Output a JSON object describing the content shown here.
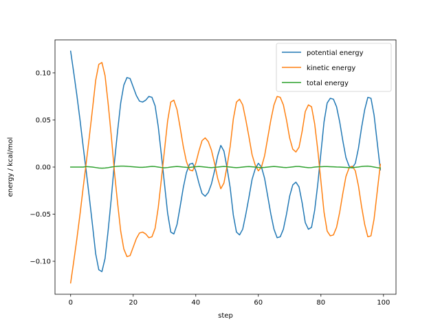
{
  "chart_data": {
    "type": "line",
    "title": "",
    "xlabel": "step",
    "ylabel": "energy / kcal/mol",
    "xlim": [
      -5,
      104
    ],
    "ylim": [
      -0.135,
      0.135
    ],
    "xticks": [
      0,
      20,
      40,
      60,
      80,
      100
    ],
    "yticks": [
      -0.1,
      -0.05,
      0.0,
      0.05,
      0.1
    ],
    "ytick_labels": [
      "−0.10",
      "−0.05",
      "0.00",
      "0.05",
      "0.10"
    ],
    "grid": false,
    "legend_position": "top-right",
    "x": [
      0,
      1,
      2,
      3,
      4,
      5,
      6,
      7,
      8,
      9,
      10,
      11,
      12,
      13,
      14,
      15,
      16,
      17,
      18,
      19,
      20,
      21,
      22,
      23,
      24,
      25,
      26,
      27,
      28,
      29,
      30,
      31,
      32,
      33,
      34,
      35,
      36,
      37,
      38,
      39,
      40,
      41,
      42,
      43,
      44,
      45,
      46,
      47,
      48,
      49,
      50,
      51,
      52,
      53,
      54,
      55,
      56,
      57,
      58,
      59,
      60,
      61,
      62,
      63,
      64,
      65,
      66,
      67,
      68,
      69,
      70,
      71,
      72,
      73,
      74,
      75,
      76,
      77,
      78,
      79,
      80,
      81,
      82,
      83,
      84,
      85,
      86,
      87,
      88,
      89,
      90,
      91,
      92,
      93,
      94,
      95,
      96,
      97,
      98,
      99
    ],
    "series": [
      {
        "name": "potential energy",
        "color": "#1f77b4",
        "values": [
          0.123,
          0.1,
          0.076,
          0.05,
          0.022,
          -0.005,
          -0.033,
          -0.062,
          -0.092,
          -0.109,
          -0.111,
          -0.097,
          -0.067,
          -0.033,
          0.005,
          0.038,
          0.068,
          0.087,
          0.095,
          0.094,
          0.085,
          0.076,
          0.07,
          0.069,
          0.071,
          0.075,
          0.074,
          0.065,
          0.043,
          0.013,
          -0.018,
          -0.049,
          -0.069,
          -0.071,
          -0.061,
          -0.042,
          -0.022,
          -0.006,
          0.003,
          0.004,
          -0.004,
          -0.017,
          -0.028,
          -0.031,
          -0.027,
          -0.018,
          -0.004,
          0.012,
          0.023,
          0.017,
          -0.001,
          -0.022,
          -0.051,
          -0.069,
          -0.072,
          -0.066,
          -0.05,
          -0.032,
          -0.013,
          -0.002,
          0.004,
          0.0,
          -0.012,
          -0.031,
          -0.05,
          -0.066,
          -0.075,
          -0.074,
          -0.066,
          -0.05,
          -0.031,
          -0.019,
          -0.016,
          -0.021,
          -0.038,
          -0.059,
          -0.066,
          -0.064,
          -0.046,
          -0.018,
          0.015,
          0.048,
          0.068,
          0.073,
          0.072,
          0.064,
          0.048,
          0.028,
          0.01,
          0.001,
          -0.001,
          0.004,
          0.02,
          0.042,
          0.061,
          0.074,
          0.073,
          0.055,
          0.026,
          -0.003
        ]
      },
      {
        "name": "kinetic energy",
        "color": "#ff7f0e",
        "values": [
          -0.123,
          -0.1,
          -0.076,
          -0.05,
          -0.022,
          0.005,
          0.033,
          0.062,
          0.092,
          0.109,
          0.111,
          0.097,
          0.067,
          0.033,
          -0.005,
          -0.038,
          -0.068,
          -0.087,
          -0.095,
          -0.094,
          -0.085,
          -0.076,
          -0.07,
          -0.069,
          -0.071,
          -0.075,
          -0.074,
          -0.065,
          -0.043,
          -0.013,
          0.018,
          0.049,
          0.069,
          0.071,
          0.061,
          0.042,
          0.022,
          0.006,
          -0.003,
          -0.004,
          0.004,
          0.017,
          0.028,
          0.031,
          0.027,
          0.018,
          0.004,
          -0.012,
          -0.023,
          -0.017,
          0.001,
          0.022,
          0.051,
          0.069,
          0.072,
          0.066,
          0.05,
          0.032,
          0.013,
          0.002,
          -0.004,
          0.0,
          0.012,
          0.031,
          0.05,
          0.066,
          0.075,
          0.074,
          0.066,
          0.05,
          0.031,
          0.019,
          0.016,
          0.021,
          0.038,
          0.059,
          0.066,
          0.064,
          0.046,
          0.018,
          -0.015,
          -0.048,
          -0.068,
          -0.073,
          -0.072,
          -0.064,
          -0.048,
          -0.028,
          -0.01,
          -0.001,
          0.001,
          -0.004,
          -0.02,
          -0.042,
          -0.061,
          -0.074,
          -0.073,
          -0.055,
          -0.026,
          0.003
        ]
      },
      {
        "name": "total energy",
        "color": "#2ca02c",
        "values": [
          0.0,
          0.0,
          0.0,
          0.0,
          0.0,
          0.0005,
          0.0003,
          0.0,
          -0.0005,
          -0.001,
          -0.0012,
          -0.001,
          -0.0006,
          0.0,
          0.0005,
          0.0008,
          0.001,
          0.001,
          0.0008,
          0.0005,
          0.0003,
          0.0,
          -0.0003,
          -0.0003,
          0.0,
          0.0004,
          0.0007,
          0.0005,
          0.0,
          -0.0005,
          -0.0008,
          -0.0005,
          0.0,
          0.0004,
          0.0006,
          0.0004,
          0.0,
          -0.0003,
          -0.0004,
          0.0,
          0.0004,
          0.0006,
          0.0004,
          0.0,
          -0.0004,
          -0.0006,
          -0.0003,
          0.0,
          0.0004,
          0.0006,
          0.0004,
          0.0,
          -0.0004,
          -0.0006,
          -0.0004,
          0.0,
          0.0004,
          0.0005,
          0.0003,
          0.0,
          -0.0004,
          -0.0006,
          -0.0004,
          0.0,
          0.0004,
          0.0006,
          0.0004,
          0.0,
          -0.0004,
          -0.0005,
          -0.0002,
          0.0002,
          0.0006,
          0.0006,
          0.0002,
          -0.0003,
          -0.0006,
          -0.0005,
          0.0,
          0.0003,
          0.0004,
          0.0005,
          0.0005,
          0.0004,
          0.0003,
          0.0001,
          0.0,
          -0.0002,
          -0.0004,
          -0.0006,
          -0.0006,
          -0.0003,
          0.0001,
          0.0006,
          0.0009,
          0.001,
          0.0006,
          0.0,
          -0.0006,
          -0.001
        ]
      }
    ]
  }
}
